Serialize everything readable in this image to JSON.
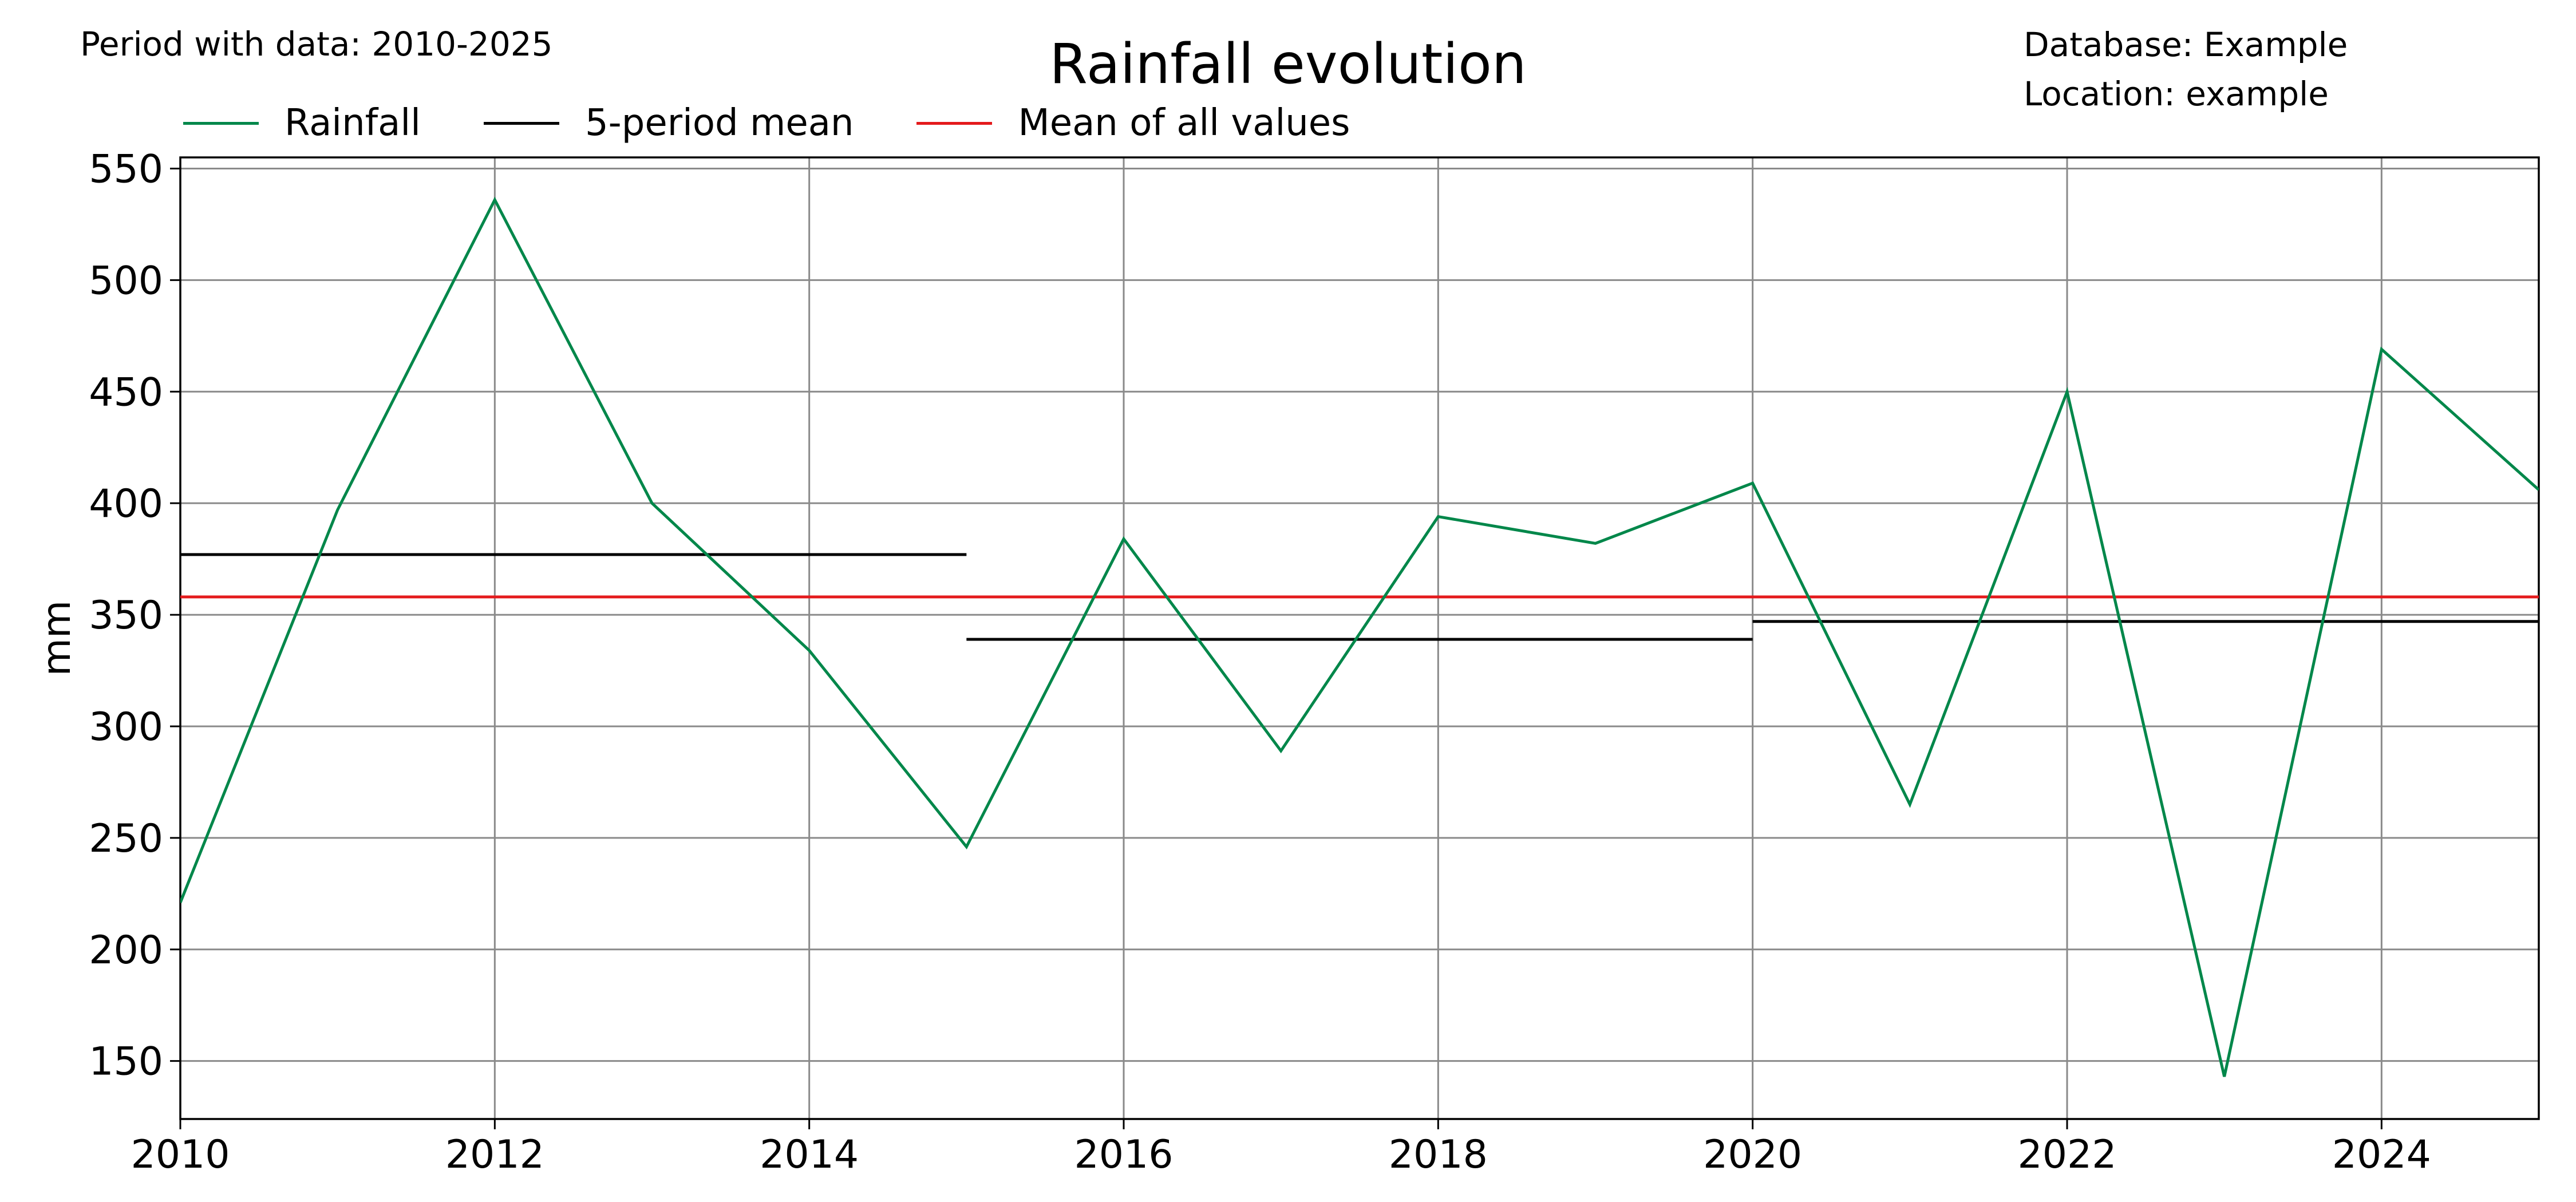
{
  "header": {
    "period_text": "Period with data: 2010-2025",
    "title": "Rainfall evolution",
    "database_text": "Database: Example",
    "location_text": "Location: example"
  },
  "legend": [
    {
      "label": "Rainfall",
      "color": "#00874a"
    },
    {
      "label": "5-period mean",
      "color": "#000000"
    },
    {
      "label": "Mean of all values",
      "color": "#e41a1c"
    }
  ],
  "chart_data": {
    "type": "line",
    "title": "Rainfall evolution",
    "xlabel": "",
    "ylabel": "mm",
    "xlim": [
      2010,
      2025
    ],
    "ylim": [
      124,
      555
    ],
    "xticks": [
      2010,
      2012,
      2014,
      2016,
      2018,
      2020,
      2022,
      2024
    ],
    "yticks": [
      150,
      200,
      250,
      300,
      350,
      400,
      450,
      500,
      550
    ],
    "grid": true,
    "legend_position": "top-left",
    "series": [
      {
        "name": "Rainfall",
        "color": "#00874a",
        "x": [
          2010,
          2011,
          2012,
          2013,
          2014,
          2015,
          2016,
          2017,
          2018,
          2019,
          2020,
          2021,
          2022,
          2023,
          2024,
          2025
        ],
        "y": [
          221,
          397,
          536,
          400,
          334,
          246,
          384,
          289,
          394,
          382,
          409,
          265,
          450,
          143,
          469,
          406
        ]
      },
      {
        "name": "5-period mean",
        "color": "#000000",
        "segments": [
          {
            "x": [
              2010,
              2015
            ],
            "y": 377
          },
          {
            "x": [
              2015,
              2020
            ],
            "y": 339
          },
          {
            "x": [
              2020,
              2025
            ],
            "y": 347
          }
        ]
      },
      {
        "name": "Mean of all values",
        "color": "#e41a1c",
        "x": [
          2010,
          2025
        ],
        "y": 358
      }
    ]
  }
}
